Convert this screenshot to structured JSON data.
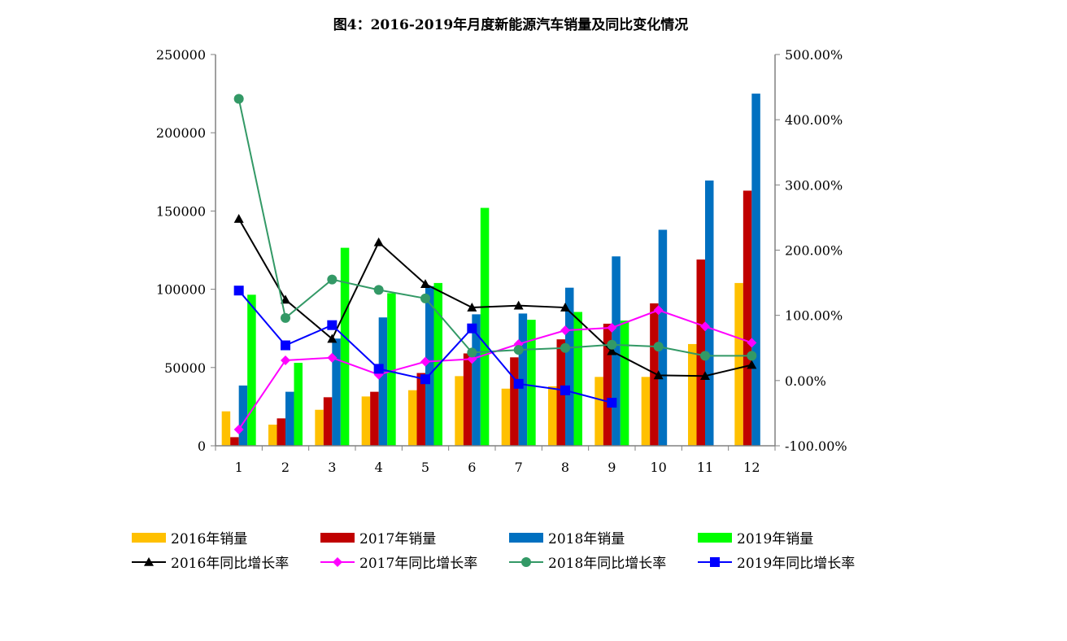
{
  "chart_data": {
    "type": "bar",
    "title": "图4：2016-2019年月度新能源汽车销量及同比变化情况",
    "categories": [
      "1",
      "2",
      "3",
      "4",
      "5",
      "6",
      "7",
      "8",
      "9",
      "10",
      "11",
      "12"
    ],
    "y_left": {
      "min": 0,
      "max": 250000,
      "ticks": [
        "0",
        "50000",
        "100000",
        "150000",
        "200000",
        "250000"
      ]
    },
    "y_right": {
      "min": -100,
      "max": 500,
      "ticks": [
        "-100.00%",
        "0.00%",
        "100.00%",
        "200.00%",
        "300.00%",
        "400.00%",
        "500.00%"
      ]
    },
    "bar_series": [
      {
        "name": "2016年销量",
        "color": "#FFC000",
        "values": [
          22000,
          13500,
          23000,
          31500,
          35500,
          44500,
          36500,
          38000,
          44000,
          44000,
          65000,
          104000
        ]
      },
      {
        "name": "2017年销量",
        "color": "#C00000",
        "values": [
          5500,
          17500,
          31000,
          34500,
          46500,
          59000,
          56500,
          68000,
          78000,
          91000,
          119000,
          163000
        ]
      },
      {
        "name": "2018年销量",
        "color": "#0070C0",
        "values": [
          38500,
          34500,
          68500,
          82000,
          102000,
          84000,
          84500,
          101000,
          121000,
          138000,
          169500,
          225000
        ]
      },
      {
        "name": "2019年销量",
        "color": "#00FF00",
        "values": [
          96500,
          53000,
          126500,
          97500,
          104000,
          152000,
          80500,
          85500,
          80000,
          null,
          null,
          null
        ]
      }
    ],
    "line_series": [
      {
        "name": "2016年同比增长率",
        "color": "#000000",
        "marker": "triangle",
        "values": [
          248,
          124,
          64,
          212,
          148,
          112,
          115,
          112,
          45,
          8,
          7,
          24
        ]
      },
      {
        "name": "2017年同比增长率",
        "color": "#FF00FF",
        "marker": "diamond",
        "values": [
          -75,
          31,
          35,
          9,
          29,
          33,
          56,
          77,
          81,
          108,
          83,
          58
        ]
      },
      {
        "name": "2018年同比增长率",
        "color": "#339966",
        "marker": "circle",
        "values": [
          432,
          96,
          155,
          139,
          126,
          43,
          47,
          50,
          55,
          52,
          38,
          38
        ]
      },
      {
        "name": "2019年同比增长率",
        "color": "#0000FF",
        "marker": "square",
        "values": [
          138,
          54,
          85,
          18,
          2,
          80,
          -5,
          -15,
          -34,
          null,
          null,
          null
        ]
      }
    ],
    "legend_position": "bottom",
    "grid": false
  }
}
